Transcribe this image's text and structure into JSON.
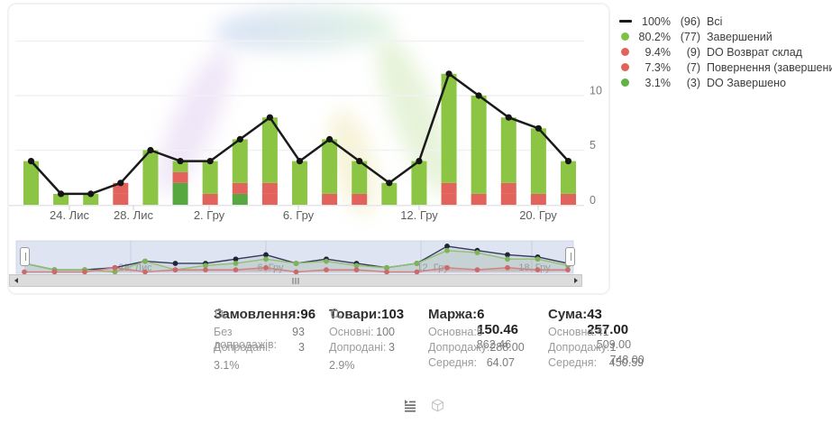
{
  "legend": {
    "items": [
      {
        "marker": "line",
        "color": "#1a1a1a",
        "pct": "100%",
        "count": "(96)",
        "label": "Всі"
      },
      {
        "marker": "dot",
        "color": "#7dc243",
        "pct": "80.2%",
        "count": "(77)",
        "label": "Завершений"
      },
      {
        "marker": "dot",
        "color": "#e2625c",
        "pct": "9.4%",
        "count": "(9)",
        "label": "DO Возврат склад"
      },
      {
        "marker": "dot",
        "color": "#e2625c",
        "pct": "7.3%",
        "count": "(7)",
        "label": "Повернення (завершений)"
      },
      {
        "marker": "dot",
        "color": "#5fb244",
        "pct": "3.1%",
        "count": "(3)",
        "label": "DO Завершено"
      }
    ]
  },
  "chart_data": {
    "type": "stacked-bar+line",
    "title": "",
    "ylim": [
      0,
      15
    ],
    "y_ticks": [
      "0",
      "5",
      "10"
    ],
    "grid": true,
    "legend_position": "top-right",
    "x_axis_labels": [
      {
        "text": "24. Лис",
        "x": 77
      },
      {
        "text": "28. Лис",
        "x": 148
      },
      {
        "text": "2. Гру",
        "x": 232
      },
      {
        "text": "6. Гру",
        "x": 331
      },
      {
        "text": "12. Гру",
        "x": 465
      },
      {
        "text": "20. Гру",
        "x": 597
      }
    ],
    "days": 19,
    "line_series": {
      "name": "Всі",
      "color": "#1a1a1a",
      "values": [
        4,
        1,
        1,
        2,
        5,
        4,
        4,
        6,
        8,
        4,
        6,
        4,
        2,
        4,
        12,
        10,
        8,
        7,
        4
      ]
    },
    "stack_series_bottom_to_top": [
      {
        "name": "DO Завершено",
        "color": "#57a83f",
        "values": [
          0,
          0,
          0,
          0,
          0,
          2,
          0,
          1,
          0,
          0,
          0,
          0,
          0,
          0,
          0,
          0,
          0,
          0,
          0
        ]
      },
      {
        "name": "Повернення (завершений)",
        "color": "#e2625c",
        "values": [
          0,
          0,
          0,
          1,
          0,
          0,
          0,
          0,
          1,
          0,
          0,
          1,
          0,
          0,
          1,
          0,
          1,
          1,
          1
        ]
      },
      {
        "name": "DO Возврат склад",
        "color": "#e2625c",
        "values": [
          0,
          0,
          0,
          1,
          0,
          1,
          1,
          1,
          1,
          0,
          1,
          0,
          0,
          0,
          1,
          1,
          1,
          0,
          0
        ]
      },
      {
        "name": "Завершений",
        "color": "#8cc544",
        "values": [
          4,
          1,
          1,
          0,
          5,
          1,
          3,
          4,
          6,
          4,
          5,
          3,
          2,
          4,
          10,
          9,
          6,
          6,
          3
        ]
      }
    ],
    "navigator": {
      "background": "#dee4f2",
      "labels": [
        {
          "text": "28. Лис",
          "x": 150
        },
        {
          "text": "6. Гру",
          "x": 300
        },
        {
          "text": "12. Гру",
          "x": 480
        },
        {
          "text": "18. Гру",
          "x": 593
        }
      ],
      "series": {
        "total": {
          "color": "#343c55",
          "dot": "#1f2438"
        },
        "completed": {
          "color": "#93c070",
          "dot": "#7db457"
        },
        "returns": {
          "color": "#cf8383",
          "dot": "#ca6a6a",
          "values": [
            0,
            0,
            0,
            2,
            0,
            1,
            1,
            1,
            2,
            0,
            1,
            1,
            0,
            0,
            2,
            1,
            2,
            1,
            1
          ]
        }
      }
    }
  },
  "stats": {
    "columns": [
      {
        "title": "Замовлення:",
        "value": "96",
        "rows": [
          {
            "label": "Без допродажів:",
            "value": "93"
          },
          {
            "label": "Допродані:",
            "value": "3"
          }
        ],
        "basket_pct": "3.1%"
      },
      {
        "title": "Товари:",
        "value": "103",
        "rows": [
          {
            "label": "Основні:",
            "value": "100"
          },
          {
            "label": "Допродані:",
            "value": "3"
          }
        ],
        "basket_pct": "2.9%"
      },
      {
        "title": "Маржа:",
        "value": "6 150.46",
        "rows": [
          {
            "label": "Основна:",
            "value": "5 862.46"
          },
          {
            "label": "Допродажу:",
            "value": "288.00"
          },
          {
            "label": "Середня:",
            "value": "64.07"
          }
        ]
      },
      {
        "title": "Сума:",
        "value": "43 257.00",
        "rows": [
          {
            "label": "Основна:",
            "value": "41 509.00"
          },
          {
            "label": "Допродажу:",
            "value": "1 748.00"
          },
          {
            "label": "Середня:",
            "value": "450.59"
          }
        ]
      }
    ]
  },
  "icons": {
    "basket": "basket-x-icon",
    "footer": [
      "list-view-icon",
      "package-icon"
    ],
    "scroll": [
      "scroll-left-icon",
      "scroll-right-icon"
    ]
  }
}
